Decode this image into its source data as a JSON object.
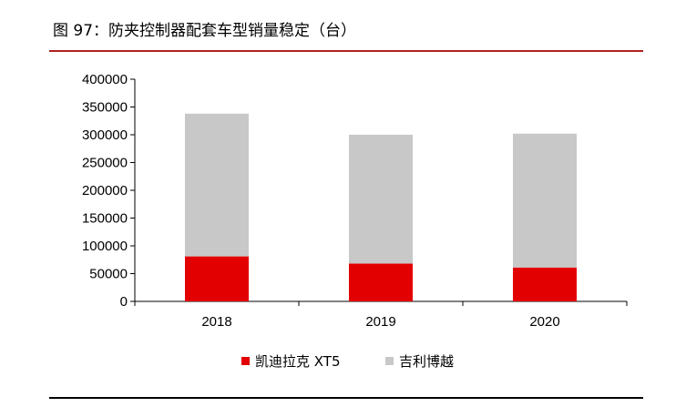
{
  "title": "图 97：防夹控制器配套车型销量稳定（台）",
  "chart_data": {
    "type": "bar",
    "stacked": true,
    "categories": [
      "2018",
      "2019",
      "2020"
    ],
    "series": [
      {
        "name": "凯迪拉克 XT5",
        "color": "#e30000",
        "values": [
          81000,
          68000,
          61000
        ]
      },
      {
        "name": "吉利博越",
        "color": "#c8c8c8",
        "values": [
          257000,
          232000,
          241000
        ]
      }
    ],
    "ylim": [
      0,
      400000
    ],
    "yticks": [
      "0",
      "50000",
      "100000",
      "150000",
      "200000",
      "250000",
      "300000",
      "350000",
      "400000"
    ],
    "legend_position": "bottom",
    "grid": false
  }
}
